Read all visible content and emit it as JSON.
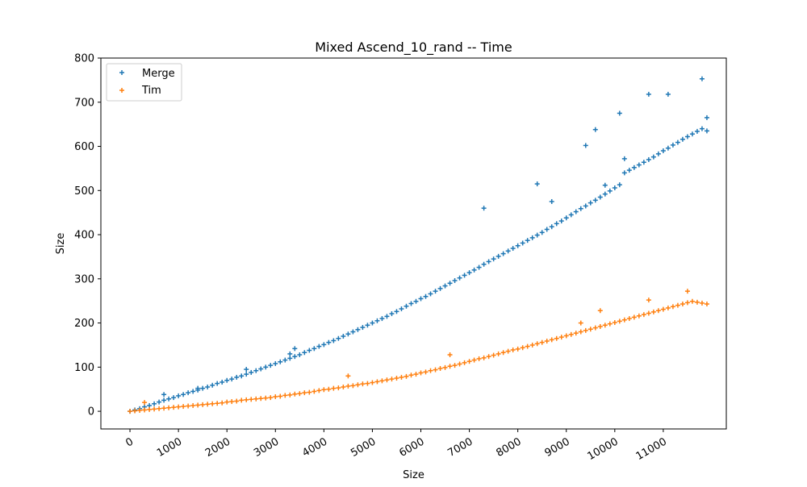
{
  "chart_data": {
    "type": "scatter",
    "title": "Mixed Ascend_10_rand -- Time",
    "xlabel": "Size",
    "ylabel": "Size",
    "xlim": [
      -600,
      12300
    ],
    "ylim": [
      -40,
      800
    ],
    "xticks": [
      0,
      1000,
      2000,
      3000,
      4000,
      5000,
      6000,
      7000,
      8000,
      9000,
      10000,
      11000
    ],
    "xtick_labels": [
      "0",
      "1000",
      "2000",
      "3000",
      "4000",
      "5000",
      "6000",
      "7000",
      "8000",
      "9000",
      "10000",
      "11000"
    ],
    "yticks": [
      0,
      100,
      200,
      300,
      400,
      500,
      600,
      700,
      800
    ],
    "ytick_labels": [
      "0",
      "100",
      "200",
      "300",
      "400",
      "500",
      "600",
      "700",
      "800"
    ],
    "marker": "+",
    "legend_position": "top-left",
    "grid": false,
    "series": [
      {
        "name": "Merge",
        "color": "#1f77b4",
        "x": [
          0,
          100,
          200,
          300,
          400,
          500,
          600,
          700,
          800,
          900,
          1000,
          1100,
          1200,
          1300,
          1400,
          1500,
          1600,
          1700,
          1800,
          1900,
          2000,
          2100,
          2200,
          2300,
          2400,
          2500,
          2600,
          2700,
          2800,
          2900,
          3000,
          3100,
          3200,
          3300,
          3400,
          3500,
          3600,
          3700,
          3800,
          3900,
          4000,
          4100,
          4200,
          4300,
          4400,
          4500,
          4600,
          4700,
          4800,
          4900,
          5000,
          5100,
          5200,
          5300,
          5400,
          5500,
          5600,
          5700,
          5800,
          5900,
          6000,
          6100,
          6200,
          6300,
          6400,
          6500,
          6600,
          6700,
          6800,
          6900,
          7000,
          7100,
          7200,
          7300,
          7400,
          7500,
          7600,
          7700,
          7800,
          7900,
          8000,
          8100,
          8200,
          8300,
          8400,
          8500,
          8600,
          8700,
          8800,
          8900,
          9000,
          9100,
          9200,
          9300,
          9400,
          9500,
          9600,
          9700,
          9800,
          9900,
          10000,
          10100,
          10200,
          10300,
          10400,
          10500,
          10600,
          10700,
          10800,
          10900,
          11000,
          11100,
          11200,
          11300,
          11400,
          11500,
          11600,
          11700,
          11800,
          11900,
          700,
          1400,
          2400,
          3300,
          3400,
          7300,
          8400,
          8700,
          9400,
          9600,
          9800,
          10100,
          10200,
          10700,
          11100,
          11800,
          11900
        ],
        "y": [
          0,
          3,
          6,
          10,
          13,
          17,
          21,
          25,
          28,
          31,
          35,
          38,
          42,
          45,
          48,
          52,
          55,
          59,
          63,
          66,
          70,
          73,
          77,
          80,
          84,
          88,
          92,
          96,
          100,
          104,
          108,
          112,
          116,
          120,
          124,
          128,
          133,
          138,
          142,
          147,
          151,
          156,
          160,
          165,
          170,
          175,
          180,
          185,
          190,
          195,
          200,
          205,
          210,
          215,
          221,
          226,
          232,
          238,
          244,
          249,
          255,
          260,
          266,
          272,
          278,
          284,
          290,
          296,
          302,
          308,
          314,
          320,
          326,
          333,
          339,
          345,
          351,
          357,
          363,
          369,
          375,
          381,
          387,
          393,
          399,
          405,
          412,
          418,
          425,
          431,
          438,
          445,
          452,
          459,
          465,
          472,
          478,
          485,
          492,
          499,
          506,
          513,
          540,
          546,
          552,
          558,
          564,
          570,
          576,
          583,
          590,
          596,
          603,
          609,
          616,
          622,
          628,
          634,
          640,
          635,
          38,
          52,
          95,
          130,
          142,
          460,
          515,
          475,
          602,
          638,
          512,
          675,
          572,
          718,
          718,
          753,
          665
        ]
      },
      {
        "name": "Tim",
        "color": "#ff7f0e",
        "x": [
          0,
          100,
          200,
          300,
          400,
          500,
          600,
          700,
          800,
          900,
          1000,
          1100,
          1200,
          1300,
          1400,
          1500,
          1600,
          1700,
          1800,
          1900,
          2000,
          2100,
          2200,
          2300,
          2400,
          2500,
          2600,
          2700,
          2800,
          2900,
          3000,
          3100,
          3200,
          3300,
          3400,
          3500,
          3600,
          3700,
          3800,
          3900,
          4000,
          4100,
          4200,
          4300,
          4400,
          4500,
          4600,
          4700,
          4800,
          4900,
          5000,
          5100,
          5200,
          5300,
          5400,
          5500,
          5600,
          5700,
          5800,
          5900,
          6000,
          6100,
          6200,
          6300,
          6400,
          6500,
          6600,
          6700,
          6800,
          6900,
          7000,
          7100,
          7200,
          7300,
          7400,
          7500,
          7600,
          7700,
          7800,
          7900,
          8000,
          8100,
          8200,
          8300,
          8400,
          8500,
          8600,
          8700,
          8800,
          8900,
          9000,
          9100,
          9200,
          9300,
          9400,
          9500,
          9600,
          9700,
          9800,
          9900,
          10000,
          10100,
          10200,
          10300,
          10400,
          10500,
          10600,
          10700,
          10800,
          10900,
          11000,
          11100,
          11200,
          11300,
          11400,
          11500,
          11600,
          11700,
          11800,
          11900,
          300,
          4500,
          6600,
          9300,
          9700,
          10700,
          11500
        ],
        "y": [
          0,
          1,
          2,
          3,
          4,
          5,
          6,
          7,
          8,
          9,
          10,
          11,
          12,
          13,
          14,
          15,
          16,
          17,
          18,
          19,
          21,
          22,
          23,
          25,
          26,
          27,
          28,
          29,
          30,
          31,
          33,
          34,
          36,
          37,
          39,
          40,
          42,
          43,
          45,
          47,
          49,
          50,
          52,
          53,
          55,
          57,
          58,
          60,
          62,
          63,
          65,
          67,
          69,
          71,
          73,
          75,
          77,
          79,
          82,
          84,
          87,
          89,
          92,
          94,
          97,
          99,
          102,
          104,
          107,
          110,
          113,
          116,
          119,
          121,
          124,
          127,
          130,
          133,
          136,
          139,
          141,
          144,
          147,
          150,
          153,
          156,
          159,
          162,
          165,
          168,
          171,
          174,
          177,
          180,
          183,
          186,
          189,
          192,
          195,
          198,
          201,
          204,
          207,
          210,
          213,
          216,
          219,
          222,
          225,
          228,
          231,
          234,
          237,
          240,
          243,
          246,
          249,
          247,
          245,
          243,
          20,
          80,
          128,
          200,
          228,
          252,
          272
        ]
      }
    ]
  }
}
